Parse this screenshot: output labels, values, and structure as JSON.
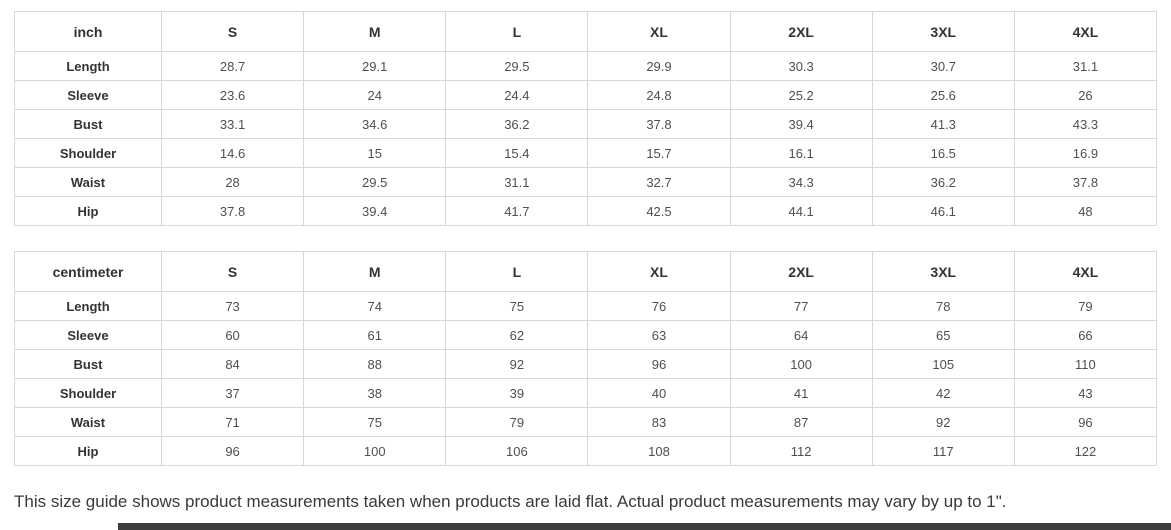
{
  "tables": [
    {
      "unit": "inch",
      "columns": [
        "S",
        "M",
        "L",
        "XL",
        "2XL",
        "3XL",
        "4XL"
      ],
      "rows": [
        {
          "label": "Length",
          "values": [
            "28.7",
            "29.1",
            "29.5",
            "29.9",
            "30.3",
            "30.7",
            "31.1"
          ]
        },
        {
          "label": "Sleeve",
          "values": [
            "23.6",
            "24",
            "24.4",
            "24.8",
            "25.2",
            "25.6",
            "26"
          ]
        },
        {
          "label": "Bust",
          "values": [
            "33.1",
            "34.6",
            "36.2",
            "37.8",
            "39.4",
            "41.3",
            "43.3"
          ]
        },
        {
          "label": "Shoulder",
          "values": [
            "14.6",
            "15",
            "15.4",
            "15.7",
            "16.1",
            "16.5",
            "16.9"
          ]
        },
        {
          "label": "Waist",
          "values": [
            "28",
            "29.5",
            "31.1",
            "32.7",
            "34.3",
            "36.2",
            "37.8"
          ]
        },
        {
          "label": "Hip",
          "values": [
            "37.8",
            "39.4",
            "41.7",
            "42.5",
            "44.1",
            "46.1",
            "48"
          ]
        }
      ]
    },
    {
      "unit": "centimeter",
      "columns": [
        "S",
        "M",
        "L",
        "XL",
        "2XL",
        "3XL",
        "4XL"
      ],
      "rows": [
        {
          "label": "Length",
          "values": [
            "73",
            "74",
            "75",
            "76",
            "77",
            "78",
            "79"
          ]
        },
        {
          "label": "Sleeve",
          "values": [
            "60",
            "61",
            "62",
            "63",
            "64",
            "65",
            "66"
          ]
        },
        {
          "label": "Bust",
          "values": [
            "84",
            "88",
            "92",
            "96",
            "100",
            "105",
            "110"
          ]
        },
        {
          "label": "Shoulder",
          "values": [
            "37",
            "38",
            "39",
            "40",
            "41",
            "42",
            "43"
          ]
        },
        {
          "label": "Waist",
          "values": [
            "71",
            "75",
            "79",
            "83",
            "87",
            "92",
            "96"
          ]
        },
        {
          "label": "Hip",
          "values": [
            "96",
            "100",
            "106",
            "108",
            "112",
            "117",
            "122"
          ]
        }
      ]
    }
  ],
  "footer": {
    "note": "This size guide shows product measurements taken when products are laid flat. Actual product measurements may vary by up to 1\"."
  },
  "colors": {
    "table_border": "#d7d7d7",
    "header_text": "#333333",
    "value_text": "#4f4f4f",
    "note_text": "#3a3a3a",
    "bottom_bar": "#3e3e3e",
    "background": "#ffffff"
  }
}
